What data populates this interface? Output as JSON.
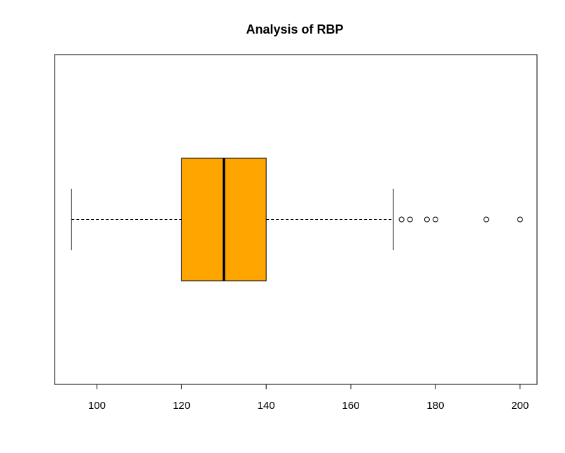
{
  "chart_data": {
    "type": "boxplot",
    "orientation": "horizontal",
    "title": "Analysis of RBP",
    "xlabel": "",
    "ylabel": "",
    "xlim": [
      90,
      204
    ],
    "x_ticks": [
      100,
      120,
      140,
      160,
      180,
      200
    ],
    "box": {
      "whisker_low": 94,
      "q1": 120,
      "median": 130,
      "q3": 140,
      "whisker_high": 170
    },
    "outliers": [
      172,
      174,
      178,
      180,
      192,
      200
    ],
    "box_color": "#FFA500",
    "line_color": "#000000",
    "grid": false
  }
}
